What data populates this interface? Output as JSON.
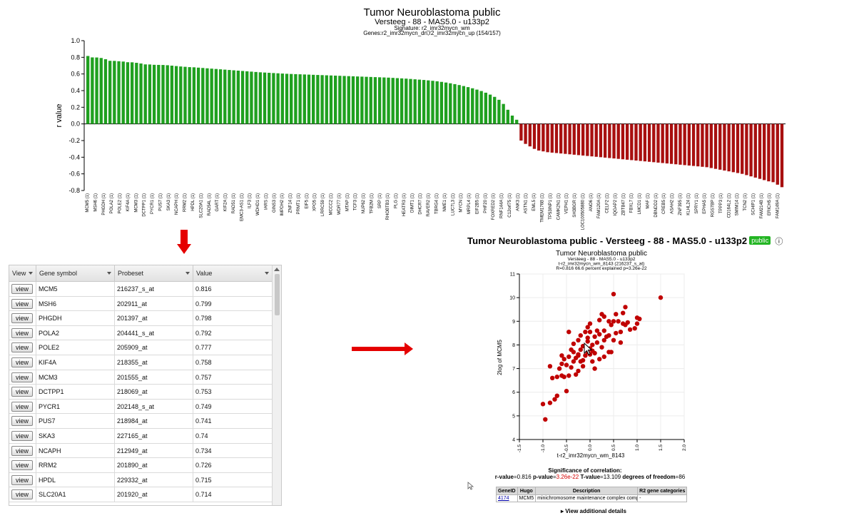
{
  "bar_chart": {
    "title": "Tumor Neuroblastoma public",
    "subtitle1": "Versteeg - 88 - MAS5.0 - u133p2",
    "subtitle2": "Signature: r2_imr32mycn_wm",
    "subtitle3": "Genes:r2_imr32mycn_dn,r2_imr32mycn_up (154/157)",
    "ylabel": "r value",
    "yticks": [
      "1.0",
      "0.8",
      "0.6",
      "0.4",
      "0.2",
      "0.0",
      "-0.2",
      "-0.4",
      "-0.6",
      "-0.8"
    ],
    "pos_color": "#1fa01f",
    "neg_color": "#a80f0f",
    "visible_labels": [
      "MCM5 (1)",
      "MSH6 (1)",
      "PHGDH (1)",
      "POLA2 (1)",
      "POLE2 (1)",
      "KIF4A (1)",
      "MCM3 (1)",
      "DCTPP1 (1)",
      "PYCR1 (1)",
      "PUS7 (1)",
      "SKA3 (1)",
      "NCAPH (1)",
      "RRM2 (1)",
      "HPDL (1)",
      "SLC20A1 (1)",
      "RAD54L (1)",
      "GART (1)",
      "KIF2A (1)",
      "RAD51 (1)",
      "EMC3-AS1 (1)",
      "ILF3 (1)",
      "WDHD1 (1)",
      "IARS (1)",
      "GINS3 (1)",
      "IMPDH2 (1)",
      "ZNF14 (1)",
      "PRMT1 (1)",
      "EIF5 (1)",
      "XPO5 (1)",
      "LRRC59 (1)",
      "MCCC2 (1)",
      "WDR77 (1)",
      "MTAP (1)",
      "TCF3 (1)",
      "NUP62 (1)",
      "TFB2M (1)",
      "SRP (1)",
      "RHOBTB3 (1)",
      "PLG (1)",
      "HEATR3 (1)",
      "DIMT1 (1)",
      "DHCR7 (1)",
      "RAVER2 (1)",
      "TBRG4 (1)",
      "NME1 (1)",
      "LUC7L3 (1)",
      "MYCN (1)",
      "MRPL4 (1)",
      "EIF2B5 (1)",
      "PHF20 (1)",
      "FOXRED2 (1)",
      "RNF144A (1)",
      "C12orf75 (1)",
      "ANK3 (1)",
      "ASTN1 (1)",
      "EML5 (1)",
      "TMEM176B (1)",
      "TP53INP1 (1)",
      "CAMK2N1 (1)",
      "VEPH1 (1)",
      "SH3BGR (1)",
      "LOC100505880 (1)",
      "ANO6 (1)",
      "FAM120A (1)",
      "CELF2 (1)",
      "IQGAP2 (1)",
      "ZBTB47 (1)",
      "FBXL7 (1)",
      "LMCD1 (1)",
      "MAF (1)",
      "DBNDD2 (1)",
      "CREB5 (1)",
      "ASAH2 (1)",
      "ZNF395 (1)",
      "KLHL24 (1)",
      "SPRY1 (1)",
      "EPHA5 (1)",
      "RGS7BP (1)",
      "TPPP3 (1)",
      "CD164L2 (1)",
      "SMIM14 (1)",
      "TCN2 (1)",
      "SCHIP1 (1)",
      "FAM214B (1)",
      "ERICH5 (1)",
      "FAM149A (1)"
    ]
  },
  "table": {
    "columns": [
      "View",
      "Gene symbol",
      "Probeset",
      "Value"
    ],
    "button_label": "view",
    "rows": [
      {
        "gene": "MCM5",
        "probeset": "216237_s_at",
        "value": "0.816"
      },
      {
        "gene": "MSH6",
        "probeset": "202911_at",
        "value": "0.799"
      },
      {
        "gene": "PHGDH",
        "probeset": "201397_at",
        "value": "0.798"
      },
      {
        "gene": "POLA2",
        "probeset": "204441_s_at",
        "value": "0.792"
      },
      {
        "gene": "POLE2",
        "probeset": "205909_at",
        "value": "0.777"
      },
      {
        "gene": "KIF4A",
        "probeset": "218355_at",
        "value": "0.758"
      },
      {
        "gene": "MCM3",
        "probeset": "201555_at",
        "value": "0.757"
      },
      {
        "gene": "DCTPP1",
        "probeset": "218069_at",
        "value": "0.753"
      },
      {
        "gene": "PYCR1",
        "probeset": "202148_s_at",
        "value": "0.749"
      },
      {
        "gene": "PUS7",
        "probeset": "218984_at",
        "value": "0.741"
      },
      {
        "gene": "SKA3",
        "probeset": "227165_at",
        "value": "0.74"
      },
      {
        "gene": "NCAPH",
        "probeset": "212949_at",
        "value": "0.734"
      },
      {
        "gene": "RRM2",
        "probeset": "201890_at",
        "value": "0.726"
      },
      {
        "gene": "HPDL",
        "probeset": "229332_at",
        "value": "0.715"
      },
      {
        "gene": "SLC20A1",
        "probeset": "201920_at",
        "value": "0.714"
      }
    ]
  },
  "detail": {
    "heading": "Tumor Neuroblastoma public - Versteeg - 88 - MAS5.0 - u133p2",
    "badge": "public",
    "info_icon": "ⓘ",
    "arrow_color": "#e50000"
  },
  "scatter": {
    "title": "Tumor Neuroblastoma public",
    "sub1": "Versteeg - 88 - MAS5.0 - u133p2",
    "sub2": "t-r2_imr32mycn_wm_8143 (216237_s_at)",
    "sub3": "R=0.816 66.6 percent explained p=3.26e-22",
    "xlabel": "t-r2_imr32mycn_wm_8143",
    "ylabel": "2log of MCM5",
    "xticks": [
      "-1.5",
      "-1.0",
      "-0.5",
      "0.0",
      "0.5",
      "1.0",
      "1.5",
      "2.0"
    ],
    "yticks": [
      "4",
      "5",
      "6",
      "7",
      "8",
      "9",
      "10",
      "11"
    ],
    "dot_color": "#c00000"
  },
  "significance": {
    "label": "Significance of correlation:",
    "r_label": "r-value",
    "r": "0.816",
    "p_label": "p-value",
    "p": "3.26e-22",
    "t_label": "T-value",
    "t": "13.109",
    "df_label": "degrees of freedom",
    "df": "86"
  },
  "gene_info": {
    "headers": [
      "GeneID",
      "Hugo",
      "Description",
      "R2 gene categories"
    ],
    "gene_id": "4174",
    "hugo": "MCM5",
    "description": "minichromosome maintenance complex component 5",
    "categories": "-"
  },
  "view_details": "▸ View additional details",
  "chart_data": [
    {
      "type": "bar",
      "title": "Tumor Neuroblastoma public",
      "ylabel": "r value",
      "ylim": [
        -0.8,
        1.0
      ],
      "grid": false,
      "values": [
        0.816,
        0.799,
        0.798,
        0.792,
        0.777,
        0.758,
        0.757,
        0.753,
        0.749,
        0.741,
        0.74,
        0.734,
        0.726,
        0.715,
        0.714,
        0.71,
        0.709,
        0.708,
        0.705,
        0.7,
        0.695,
        0.69,
        0.686,
        0.682,
        0.68,
        0.676,
        0.672,
        0.668,
        0.664,
        0.66,
        0.656,
        0.652,
        0.648,
        0.644,
        0.64,
        0.636,
        0.632,
        0.628,
        0.624,
        0.62,
        0.617,
        0.614,
        0.611,
        0.608,
        0.605,
        0.602,
        0.6,
        0.598,
        0.596,
        0.594,
        0.592,
        0.59,
        0.588,
        0.586,
        0.584,
        0.582,
        0.58,
        0.578,
        0.576,
        0.574,
        0.572,
        0.57,
        0.568,
        0.566,
        0.564,
        0.562,
        0.56,
        0.558,
        0.556,
        0.553,
        0.55,
        0.547,
        0.544,
        0.54,
        0.536,
        0.532,
        0.528,
        0.523,
        0.518,
        0.512,
        0.505,
        0.497,
        0.488,
        0.478,
        0.467,
        0.455,
        0.442,
        0.428,
        0.412,
        0.395,
        0.375,
        0.352,
        0.325,
        0.29,
        0.24,
        0.17,
        0.1,
        0.05,
        -0.2,
        -0.24,
        -0.27,
        -0.3,
        -0.32,
        -0.33,
        -0.34,
        -0.345,
        -0.35,
        -0.355,
        -0.36,
        -0.365,
        -0.37,
        -0.375,
        -0.38,
        -0.385,
        -0.39,
        -0.395,
        -0.4,
        -0.405,
        -0.41,
        -0.415,
        -0.42,
        -0.425,
        -0.43,
        -0.435,
        -0.44,
        -0.445,
        -0.45,
        -0.455,
        -0.46,
        -0.465,
        -0.47,
        -0.475,
        -0.48,
        -0.485,
        -0.49,
        -0.495,
        -0.5,
        -0.505,
        -0.51,
        -0.515,
        -0.52,
        -0.53,
        -0.54,
        -0.55,
        -0.56,
        -0.57,
        -0.58,
        -0.59,
        -0.6,
        -0.615,
        -0.63,
        -0.645,
        -0.66,
        -0.675,
        -0.69,
        -0.7,
        -0.73,
        -0.76
      ]
    },
    {
      "type": "scatter",
      "title": "Tumor Neuroblastoma public",
      "xlabel": "t-r2_imr32mycn_wm_8143",
      "ylabel": "2log of MCM5",
      "xlim": [
        -1.5,
        2.0
      ],
      "ylim": [
        4,
        11
      ],
      "grid": true,
      "points": [
        [
          -0.95,
          4.85
        ],
        [
          -1.0,
          5.5
        ],
        [
          -0.85,
          5.55
        ],
        [
          -0.75,
          5.7
        ],
        [
          -0.7,
          5.85
        ],
        [
          -0.5,
          6.05
        ],
        [
          -0.8,
          6.6
        ],
        [
          -0.7,
          6.65
        ],
        [
          -0.6,
          6.7
        ],
        [
          -0.55,
          6.65
        ],
        [
          -0.45,
          6.7
        ],
        [
          -0.3,
          6.75
        ],
        [
          -0.25,
          6.9
        ],
        [
          -0.85,
          7.1
        ],
        [
          -0.65,
          7.0
        ],
        [
          -0.6,
          7.2
        ],
        [
          -0.5,
          7.15
        ],
        [
          -0.4,
          7.05
        ],
        [
          -0.35,
          7.3
        ],
        [
          -0.2,
          7.3
        ],
        [
          -0.15,
          7.1
        ],
        [
          0.1,
          7.0
        ],
        [
          0.05,
          7.3
        ],
        [
          -0.55,
          7.4
        ],
        [
          -0.45,
          7.5
        ],
        [
          -0.3,
          7.45
        ],
        [
          -0.25,
          7.6
        ],
        [
          -0.1,
          7.55
        ],
        [
          -0.05,
          7.7
        ],
        [
          0.0,
          7.6
        ],
        [
          0.2,
          7.4
        ],
        [
          0.3,
          7.5
        ],
        [
          0.4,
          7.7
        ],
        [
          0.45,
          7.7
        ],
        [
          -0.4,
          7.8
        ],
        [
          -0.2,
          7.8
        ],
        [
          -0.15,
          7.95
        ],
        [
          0.0,
          7.85
        ],
        [
          0.05,
          8.0
        ],
        [
          0.15,
          8.1
        ],
        [
          0.25,
          7.9
        ],
        [
          -0.35,
          8.05
        ],
        [
          -0.25,
          8.2
        ],
        [
          0.3,
          8.2
        ],
        [
          -0.05,
          8.3
        ],
        [
          0.1,
          8.35
        ],
        [
          0.2,
          8.45
        ],
        [
          0.5,
          8.2
        ],
        [
          0.55,
          8.5
        ],
        [
          0.65,
          8.55
        ],
        [
          0.4,
          8.4
        ],
        [
          -0.1,
          8.55
        ],
        [
          0.0,
          8.55
        ],
        [
          -0.45,
          8.55
        ],
        [
          0.3,
          8.6
        ],
        [
          -0.05,
          8.75
        ],
        [
          0.0,
          8.9
        ],
        [
          0.2,
          9.05
        ],
        [
          0.25,
          9.3
        ],
        [
          0.3,
          9.2
        ],
        [
          0.6,
          9.0
        ],
        [
          0.7,
          8.9
        ],
        [
          0.75,
          8.85
        ],
        [
          0.8,
          8.95
        ],
        [
          0.85,
          8.65
        ],
        [
          0.5,
          9.0
        ],
        [
          0.55,
          9.3
        ],
        [
          0.7,
          9.35
        ],
        [
          0.75,
          9.6
        ],
        [
          0.95,
          8.7
        ],
        [
          1.0,
          8.9
        ],
        [
          1.05,
          9.1
        ],
        [
          1.0,
          9.15
        ],
        [
          0.5,
          10.15
        ],
        [
          1.5,
          10.0
        ],
        [
          -0.25,
          7.55
        ],
        [
          -0.15,
          7.35
        ],
        [
          0.05,
          7.75
        ],
        [
          0.35,
          8.35
        ],
        [
          -0.35,
          7.7
        ],
        [
          -0.6,
          7.55
        ],
        [
          0.15,
          8.6
        ],
        [
          0.45,
          8.85
        ],
        [
          0.4,
          9.0
        ],
        [
          -0.2,
          8.4
        ],
        [
          0.1,
          7.65
        ],
        [
          -0.05,
          8.15
        ],
        [
          0.65,
          8.1
        ]
      ]
    }
  ]
}
